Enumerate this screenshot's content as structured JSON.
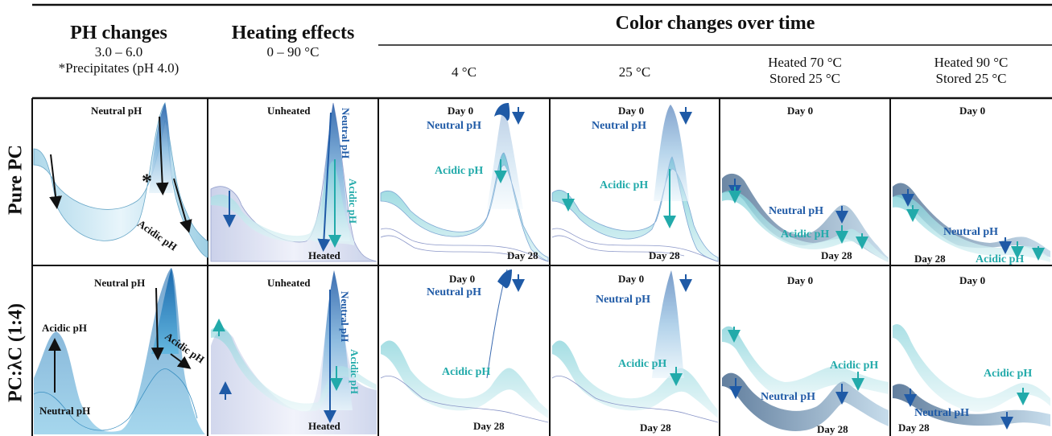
{
  "header": {
    "ph_title": "PH changes",
    "ph_range": "3.0 – 6.0",
    "ph_note": "*Precipitates (pH 4.0)",
    "heat_title": "Heating effects",
    "heat_range": "0 – 90 °C",
    "time_title": "Color changes over time",
    "cond_4": "4 °C",
    "cond_25": "25 °C",
    "cond_70_a": "Heated 70 °C",
    "cond_70_b": "Stored 25 °C",
    "cond_90_a": "Heated 90 °C",
    "cond_90_b": "Stored 25 °C"
  },
  "rows": {
    "pure": "Pure PC",
    "mix": "PC:λC (1:4)"
  },
  "labels": {
    "neutral_ph": "Neutral pH",
    "acidic_ph": "Acidic pH",
    "asterisk": "*",
    "unheated": "Unheated",
    "heated": "Heated",
    "day0": "Day 0",
    "day28": "Day 28"
  },
  "colors": {
    "dark_blue": "#1f5aa6",
    "teal": "#22aaaa",
    "light_fill": "#cfe8f3",
    "grid": "#111111"
  }
}
